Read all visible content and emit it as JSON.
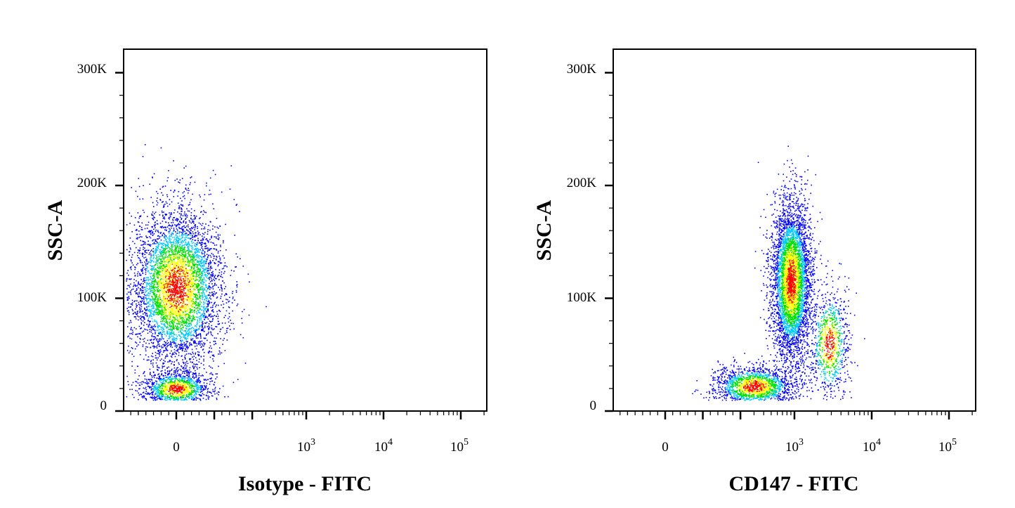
{
  "chart_data": [
    {
      "type": "scatter",
      "subtype": "flow-cytometry-density-plot",
      "xlabel": "Isotype - FITC",
      "ylabel": "SSC-A",
      "x_scale": "biexponential",
      "ylim": [
        0,
        300000
      ],
      "y_ticks": [
        "0",
        "100K",
        "200K",
        "300K"
      ],
      "x_ticks": [
        {
          "base": "0",
          "exp": ""
        },
        {
          "base": "10",
          "exp": "3"
        },
        {
          "base": "10",
          "exp": "4"
        },
        {
          "base": "10",
          "exp": "5"
        }
      ],
      "populations": [
        {
          "x_center": 0,
          "y_center": 110000,
          "x_spread": 60,
          "y_spread": 35000,
          "events": 5200
        },
        {
          "x_center": 0,
          "y_center": 20000,
          "x_spread": 45,
          "y_spread": 8000,
          "events": 1300
        }
      ]
    },
    {
      "type": "scatter",
      "subtype": "flow-cytometry-density-plot",
      "xlabel": "CD147 - FITC",
      "ylabel": "SSC-A",
      "x_scale": "biexponential",
      "ylim": [
        0,
        300000
      ],
      "y_ticks": [
        "0",
        "100K",
        "200K",
        "300K"
      ],
      "x_ticks": [
        {
          "base": "0",
          "exp": ""
        },
        {
          "base": "10",
          "exp": "3"
        },
        {
          "base": "10",
          "exp": "4"
        },
        {
          "base": "10",
          "exp": "5"
        }
      ],
      "populations": [
        {
          "x_center": 900,
          "y_center": 115000,
          "x_spread": 250,
          "y_spread": 35000,
          "events": 4800
        },
        {
          "x_center": 300,
          "y_center": 22000,
          "x_spread": 250,
          "y_spread": 9000,
          "events": 1800
        },
        {
          "x_center": 2800,
          "y_center": 60000,
          "x_spread": 900,
          "y_spread": 25000,
          "events": 900
        }
      ]
    }
  ],
  "colors": {
    "density_low": "#0000ff",
    "density_mid_low": "#00c8ff",
    "density_mid": "#00e000",
    "density_mid_high": "#ffff00",
    "density_high": "#ff0000",
    "axis": "#000000"
  }
}
